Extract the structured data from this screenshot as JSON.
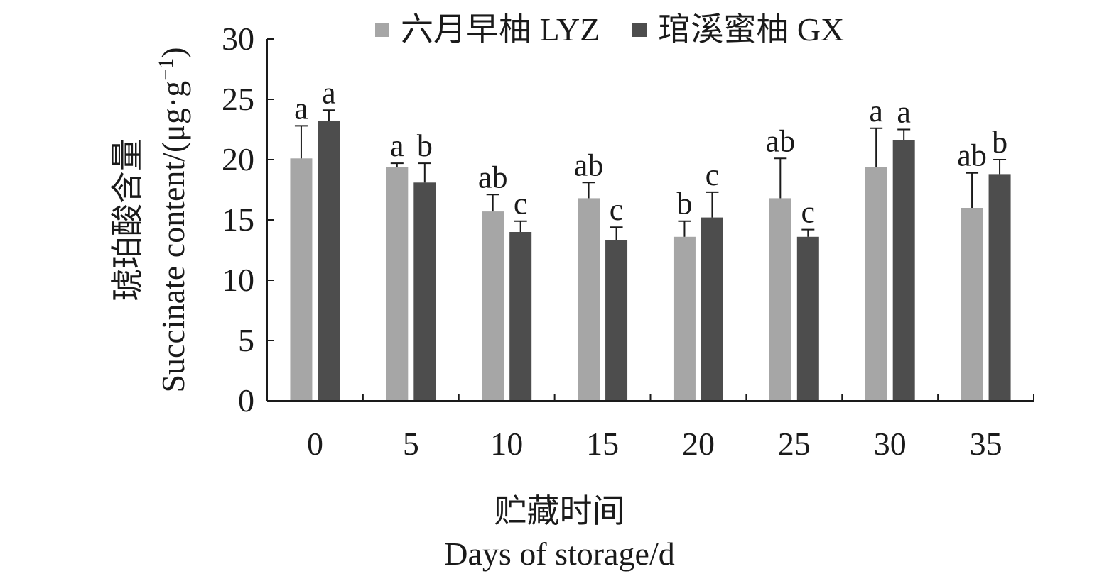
{
  "chart_data": {
    "type": "bar",
    "categories": [
      "0",
      "5",
      "10",
      "15",
      "20",
      "25",
      "30",
      "35"
    ],
    "series": [
      {
        "name": "六月早柚 LYZ",
        "color": "#a6a6a6",
        "values": [
          20.1,
          19.4,
          15.7,
          16.8,
          13.6,
          16.8,
          19.4,
          16.0
        ],
        "errors": [
          2.7,
          0.3,
          1.4,
          1.3,
          1.3,
          3.3,
          3.2,
          2.9
        ],
        "labels": [
          "a",
          "a",
          "ab",
          "ab",
          "b",
          "ab",
          "a",
          "ab"
        ]
      },
      {
        "name": "琯溪蜜柚 GX",
        "color": "#4d4d4d",
        "values": [
          23.2,
          18.1,
          14.0,
          13.3,
          15.2,
          13.6,
          21.6,
          18.8
        ],
        "errors": [
          0.9,
          1.6,
          0.9,
          1.1,
          2.1,
          0.6,
          0.9,
          1.2
        ],
        "labels": [
          "a",
          "b",
          "c",
          "c",
          "c",
          "c",
          "a",
          "b"
        ]
      }
    ],
    "ylim": [
      0,
      30
    ],
    "yticks": [
      "0",
      "5",
      "10",
      "15",
      "20",
      "25",
      "30"
    ],
    "xlabel_cn": "贮藏时间",
    "xlabel_en": "Days of storage/d",
    "ylabel_cn": "琥珀酸含量",
    "ylabel_en": "Succinate content/(μg·g",
    "ylabel_en_sup": "−1",
    "ylabel_en_tail": ")",
    "legend_position": "top",
    "grid": false
  }
}
